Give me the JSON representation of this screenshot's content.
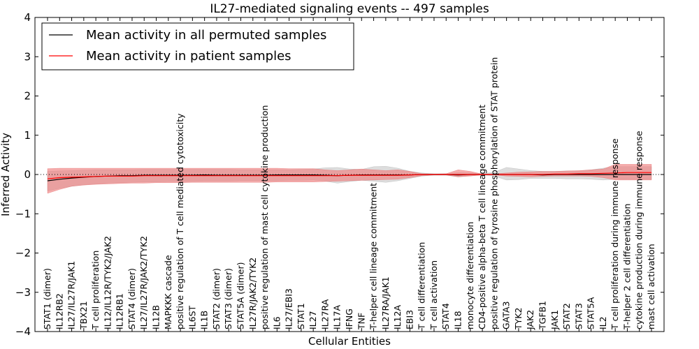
{
  "chart_data": {
    "type": "line",
    "title": "IL27-mediated signaling events -- 497 samples",
    "xlabel": "Cellular Entities",
    "ylabel": "Inferred Activity",
    "ylim": [
      -4,
      4
    ],
    "yticks": [
      4,
      3,
      2,
      1,
      0,
      -1,
      -2,
      -3,
      -4
    ],
    "ytick_labels": [
      "4",
      "3",
      "2",
      "1",
      "0",
      "−1",
      "−2",
      "−3",
      "−4"
    ],
    "grid": false,
    "legend_position": "top-left",
    "categories": [
      "STAT1 (dimer)",
      "IL12RB2",
      "IL27/IL27R/JAK1",
      "TBX21",
      "T cell proliferation",
      "IL12/IL12R/TYK2/JAK2",
      "IL12RB1",
      "STAT4 (dimer)",
      "IL27/IL27R/JAK2/TYK2",
      "IL12B",
      "MAPKKK cascade",
      "positive regulation of T cell mediated cytotoxicity",
      "IL6ST",
      "IL1B",
      "STAT2 (dimer)",
      "STAT3 (dimer)",
      "STAT5A (dimer)",
      "IL27R/JAK2/TYK2",
      "positive regulation of mast cell cytokine production",
      "IL6",
      "IL27/EBI3",
      "STAT1",
      "IL27",
      "IL27RA",
      "IL17A",
      "IFNG",
      "TNF",
      "T-helper cell lineage commitment",
      "IL27RA/JAK1",
      "IL12A",
      "EBI3",
      "T cell differentiation",
      "T cell activation",
      "STAT4",
      "IL18",
      "monocyte differentiation",
      "CD4-positive alpha-beta T cell lineage commitment",
      "positive regulation of tyrosine phosphorylation of STAT protein",
      "GATA3",
      "TYK2",
      "JAK2",
      "TGFB1",
      "JAK1",
      "STAT2",
      "STAT3",
      "STAT5A",
      "IL2",
      "T cell proliferation during immune response",
      "T-helper 2 cell differentiation",
      "cytokine production during immune response",
      "mast cell activation"
    ],
    "series": [
      {
        "name": "Mean activity in all permuted samples",
        "color": "#000000",
        "values": [
          -0.16,
          -0.12,
          -0.09,
          -0.07,
          -0.05,
          -0.04,
          -0.03,
          -0.03,
          -0.02,
          -0.02,
          -0.02,
          -0.02,
          -0.02,
          -0.01,
          -0.02,
          -0.02,
          -0.02,
          -0.02,
          -0.02,
          -0.01,
          -0.01,
          -0.01,
          -0.01,
          -0.02,
          -0.03,
          -0.02,
          -0.01,
          -0.01,
          -0.01,
          -0.01,
          -0.01,
          0.0,
          0.0,
          0.0,
          -0.01,
          0.0,
          0.0,
          0.0,
          0.0,
          0.0,
          0.0,
          -0.01,
          0.0,
          0.0,
          0.0,
          0.0,
          0.0,
          0.0,
          0.0,
          0.0,
          0.0
        ],
        "band_upper": [
          0.08,
          0.09,
          0.1,
          0.11,
          0.12,
          0.12,
          0.12,
          0.12,
          0.13,
          0.13,
          0.13,
          0.13,
          0.13,
          0.13,
          0.13,
          0.13,
          0.12,
          0.12,
          0.12,
          0.12,
          0.12,
          0.13,
          0.14,
          0.17,
          0.18,
          0.14,
          0.13,
          0.2,
          0.21,
          0.16,
          0.08,
          0.04,
          0.02,
          0.02,
          0.05,
          0.04,
          0.02,
          0.06,
          0.18,
          0.14,
          0.1,
          0.08,
          0.08,
          0.09,
          0.09,
          0.12,
          0.16,
          0.2,
          0.2,
          0.2,
          0.2
        ],
        "band_lower": [
          -0.42,
          -0.35,
          -0.3,
          -0.26,
          -0.24,
          -0.22,
          -0.21,
          -0.2,
          -0.19,
          -0.19,
          -0.18,
          -0.18,
          -0.18,
          -0.17,
          -0.17,
          -0.17,
          -0.16,
          -0.16,
          -0.16,
          -0.16,
          -0.15,
          -0.15,
          -0.14,
          -0.17,
          -0.22,
          -0.18,
          -0.15,
          -0.17,
          -0.2,
          -0.16,
          -0.1,
          -0.04,
          -0.02,
          -0.02,
          -0.06,
          -0.03,
          -0.01,
          -0.04,
          -0.14,
          -0.13,
          -0.1,
          -0.1,
          -0.1,
          -0.11,
          -0.11,
          -0.12,
          -0.14,
          -0.12,
          -0.12,
          -0.12,
          -0.12
        ]
      },
      {
        "name": "Mean activity in patient samples",
        "color": "#ff0000",
        "values": [
          -0.11,
          -0.08,
          -0.07,
          -0.06,
          -0.05,
          -0.04,
          -0.04,
          -0.04,
          -0.03,
          -0.03,
          -0.03,
          -0.03,
          -0.03,
          -0.03,
          -0.03,
          -0.03,
          -0.03,
          -0.03,
          -0.03,
          -0.03,
          -0.03,
          -0.03,
          -0.03,
          -0.03,
          -0.03,
          -0.02,
          -0.02,
          -0.02,
          -0.02,
          -0.02,
          -0.01,
          0.0,
          0.0,
          0.0,
          0.0,
          0.0,
          0.0,
          0.0,
          0.0,
          0.0,
          0.0,
          0.0,
          0.01,
          0.01,
          0.02,
          0.02,
          0.03,
          0.04,
          0.05,
          0.05,
          0.05
        ],
        "band_upper": [
          0.15,
          0.16,
          0.16,
          0.16,
          0.16,
          0.16,
          0.16,
          0.16,
          0.16,
          0.16,
          0.16,
          0.16,
          0.16,
          0.16,
          0.16,
          0.16,
          0.16,
          0.16,
          0.16,
          0.16,
          0.15,
          0.15,
          0.15,
          0.12,
          0.1,
          0.12,
          0.14,
          0.12,
          0.1,
          0.12,
          0.08,
          0.02,
          0.01,
          0.02,
          0.12,
          0.08,
          0.01,
          0.02,
          0.04,
          0.06,
          0.07,
          0.08,
          0.08,
          0.09,
          0.1,
          0.12,
          0.14,
          0.26,
          0.26,
          0.26,
          0.26
        ],
        "band_lower": [
          -0.48,
          -0.38,
          -0.3,
          -0.27,
          -0.25,
          -0.24,
          -0.23,
          -0.22,
          -0.22,
          -0.21,
          -0.21,
          -0.21,
          -0.2,
          -0.2,
          -0.2,
          -0.2,
          -0.2,
          -0.2,
          -0.2,
          -0.19,
          -0.19,
          -0.19,
          -0.19,
          -0.18,
          -0.17,
          -0.16,
          -0.15,
          -0.14,
          -0.13,
          -0.12,
          -0.08,
          -0.03,
          -0.01,
          -0.01,
          -0.06,
          -0.04,
          -0.01,
          -0.01,
          -0.04,
          -0.05,
          -0.06,
          -0.05,
          -0.04,
          -0.04,
          -0.04,
          -0.05,
          -0.08,
          -0.14,
          -0.14,
          -0.14,
          -0.14
        ]
      }
    ],
    "reference_line": {
      "y": 0,
      "style": "dotted"
    },
    "colors": {
      "permuted_band": "#bbbbbb",
      "patient_band": "#f08080",
      "axes": "#000000"
    }
  }
}
